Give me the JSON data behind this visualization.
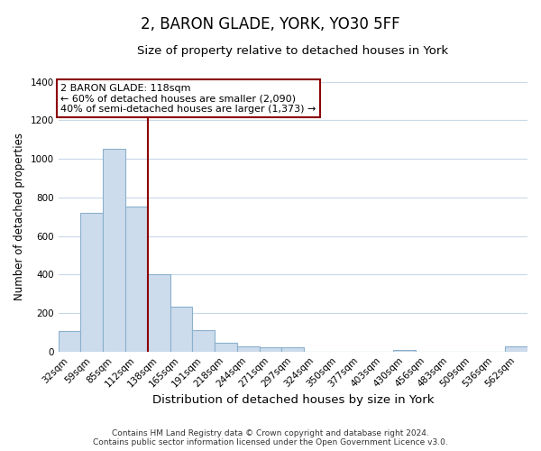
{
  "title": "2, BARON GLADE, YORK, YO30 5FF",
  "subtitle": "Size of property relative to detached houses in York",
  "xlabel": "Distribution of detached houses by size in York",
  "ylabel": "Number of detached properties",
  "categories": [
    "32sqm",
    "59sqm",
    "85sqm",
    "112sqm",
    "138sqm",
    "165sqm",
    "191sqm",
    "218sqm",
    "244sqm",
    "271sqm",
    "297sqm",
    "324sqm",
    "350sqm",
    "377sqm",
    "403sqm",
    "430sqm",
    "456sqm",
    "483sqm",
    "509sqm",
    "536sqm",
    "562sqm"
  ],
  "values": [
    108,
    720,
    1050,
    750,
    400,
    235,
    110,
    45,
    28,
    22,
    20,
    0,
    0,
    0,
    0,
    10,
    0,
    0,
    0,
    0,
    25
  ],
  "bar_color": "#cddcec",
  "bar_edge_color": "#8ab0cc",
  "vline_x_index": 3.5,
  "vline_color": "#8b0000",
  "annotation_text": "2 BARON GLADE: 118sqm\n← 60% of detached houses are smaller (2,090)\n40% of semi-detached houses are larger (1,373) →",
  "annotation_box_color": "#ffffff",
  "annotation_box_edge": "#8b0000",
  "ylim": [
    0,
    1400
  ],
  "yticks": [
    0,
    200,
    400,
    600,
    800,
    1000,
    1200,
    1400
  ],
  "footer": "Contains HM Land Registry data © Crown copyright and database right 2024.\nContains public sector information licensed under the Open Government Licence v3.0.",
  "background_color": "#ffffff",
  "grid_color": "#c8d8e8",
  "title_fontsize": 12,
  "subtitle_fontsize": 9.5,
  "xlabel_fontsize": 9.5,
  "ylabel_fontsize": 8.5,
  "tick_fontsize": 7.5,
  "footer_fontsize": 6.5,
  "annot_fontsize": 8
}
